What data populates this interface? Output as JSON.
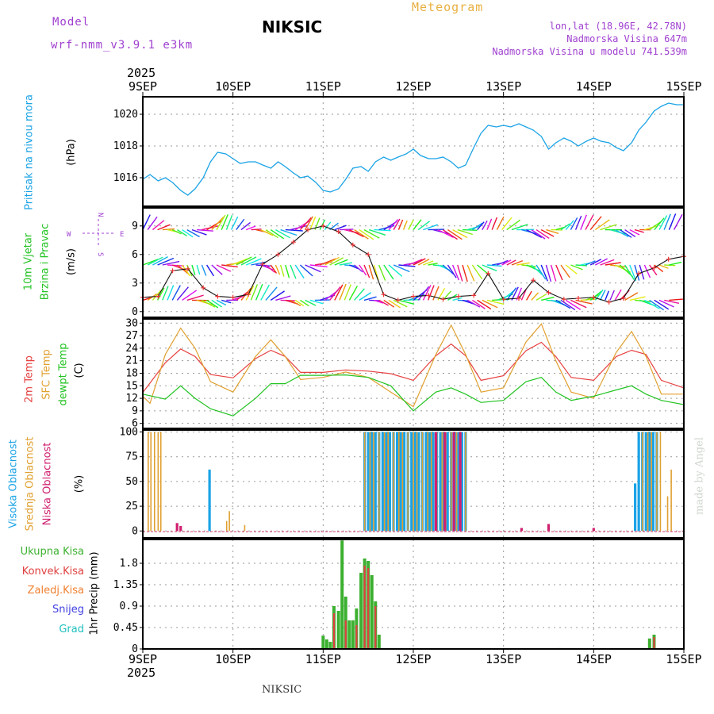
{
  "header": {
    "model_label": "Model",
    "model_name": "wrf-nmm_v3.9.1 e3km",
    "station": "NIKSIC",
    "product": "Meteogram",
    "coords": "lon,lat (18.96E, 42.78N)",
    "elevation": "Nadmorska Visina 647m",
    "model_elevation": "Nadmorska Visina u modelu 741.539m",
    "year": "2025",
    "footer": "NIKSIC",
    "watermark": "made by Angel"
  },
  "colors": {
    "pressure": "#1aa3e6",
    "temp2m": "#e64040",
    "sfc": "#e0a030",
    "dewpt": "#22c322",
    "high_cloud": "#1aa3e6",
    "mid_cloud": "#e0a030",
    "low_cloud": "#d02070",
    "total_precip": "#3cb030",
    "conv_precip": "#e04040",
    "ice_precip": "#f08030",
    "snow": "#4040e0",
    "hail": "#20c0c0",
    "wind_speed": "#ee3333"
  },
  "x_axis": {
    "ticks": [
      "9SEP",
      "10SEP",
      "11SEP",
      "12SEP",
      "13SEP",
      "14SEP",
      "15SEP"
    ]
  },
  "wind_legend": {
    "west": "W",
    "east": "E",
    "north": "N",
    "south": "S"
  },
  "panels": {
    "pressure": {
      "label": "Pritisak na nivou mora",
      "unit": "(hPa)",
      "ticks": [
        "1016",
        "1018",
        "1020"
      ]
    },
    "wind": {
      "label1": "10m Vjetar",
      "label2": "Brzina i Pravac",
      "unit": "(m/s)",
      "ticks": [
        "0",
        "3",
        "6",
        "9"
      ]
    },
    "temp": {
      "label1": "2m Temp",
      "label2": "SFC Temp",
      "label3": "dewpt Temp",
      "unit": "(C)",
      "ticks": [
        "6",
        "9",
        "12",
        "15",
        "18",
        "21",
        "24",
        "27",
        "30"
      ]
    },
    "cloud": {
      "label1": "Visoka Oblacnost",
      "label2": "Srednja Oblacnost",
      "label3": "Niska Oblacnost",
      "unit": "(%)",
      "ticks": [
        "0",
        "25",
        "50",
        "75",
        "100"
      ]
    },
    "precip": {
      "unit": "1hr Precip (mm)",
      "ticks": [
        "0",
        "0.45",
        "0.9",
        "1.35",
        "1.8"
      ],
      "legend": [
        "Ukupna Kisa",
        "Konvek.Kisa",
        "Zaledj.Kisa",
        "Snijeg",
        "Grad"
      ]
    }
  },
  "chart_data": [
    {
      "type": "line",
      "title": "",
      "ylabel": "Pritisak na nivou mora (hPa)",
      "x_unit": "days since 9SEP 00UTC",
      "ylim": [
        1014.2,
        1021.1
      ],
      "series": [
        {
          "name": "Pritisak na nivou mora",
          "x": [
            0,
            0.08,
            0.17,
            0.25,
            0.33,
            0.42,
            0.5,
            0.58,
            0.67,
            0.75,
            0.83,
            0.92,
            1.0,
            1.08,
            1.17,
            1.25,
            1.33,
            1.42,
            1.5,
            1.58,
            1.67,
            1.75,
            1.83,
            1.92,
            2.0,
            2.08,
            2.17,
            2.25,
            2.33,
            2.42,
            2.5,
            2.58,
            2.67,
            2.75,
            2.83,
            2.92,
            3.0,
            3.08,
            3.17,
            3.25,
            3.33,
            3.42,
            3.5,
            3.58,
            3.67,
            3.75,
            3.83,
            3.92,
            4.0,
            4.08,
            4.17,
            4.25,
            4.33,
            4.42,
            4.5,
            4.58,
            4.67,
            4.75,
            4.83,
            4.92,
            5.0,
            5.08,
            5.17,
            5.25,
            5.33,
            5.42,
            5.5,
            5.58,
            5.67,
            5.75,
            5.83,
            5.92,
            6.0
          ],
          "values": [
            1015.9,
            1016.2,
            1015.8,
            1016.0,
            1015.7,
            1015.2,
            1014.9,
            1015.3,
            1016.0,
            1017.0,
            1017.6,
            1017.5,
            1017.2,
            1016.9,
            1017.0,
            1017.0,
            1016.8,
            1016.6,
            1017.0,
            1016.7,
            1016.3,
            1016.0,
            1016.1,
            1015.7,
            1015.2,
            1015.1,
            1015.3,
            1015.9,
            1016.6,
            1016.7,
            1016.4,
            1017.0,
            1017.3,
            1017.1,
            1017.3,
            1017.5,
            1017.8,
            1017.4,
            1017.2,
            1017.2,
            1017.3,
            1017.0,
            1016.6,
            1016.8,
            1017.9,
            1018.8,
            1019.3,
            1019.2,
            1019.3,
            1019.2,
            1019.4,
            1019.2,
            1019.0,
            1018.6,
            1017.8,
            1018.2,
            1018.5,
            1018.3,
            1018.0,
            1018.3,
            1018.5,
            1018.3,
            1018.2,
            1017.9,
            1017.7,
            1018.2,
            1019.0,
            1019.5,
            1020.2,
            1020.5,
            1020.7,
            1020.6,
            1020.6
          ]
        }
      ]
    },
    {
      "type": "line",
      "title": "",
      "ylabel": "10m Vjetar Brzina i Pravac (m/s)",
      "x_unit": "days since 9SEP 00UTC",
      "ylim": [
        -0.6,
        10.9
      ],
      "series": [
        {
          "name": "10m Vjetar",
          "x": [
            0,
            0.17,
            0.33,
            0.5,
            0.67,
            0.83,
            1.0,
            1.17,
            1.33,
            1.5,
            1.67,
            1.83,
            2.0,
            2.17,
            2.33,
            2.5,
            2.67,
            2.83,
            3.0,
            3.17,
            3.33,
            3.5,
            3.67,
            3.83,
            4.0,
            4.17,
            4.33,
            4.5,
            4.67,
            4.83,
            5.0,
            5.17,
            5.33,
            5.5,
            5.67,
            5.83,
            6.0
          ],
          "values": [
            1.5,
            1.6,
            4.3,
            4.5,
            2.5,
            1.6,
            1.5,
            1.8,
            5.0,
            6.0,
            7.3,
            8.6,
            9.0,
            8.4,
            7.0,
            6.0,
            1.8,
            1.2,
            1.6,
            1.7,
            1.3,
            1.6,
            1.7,
            4.0,
            1.3,
            1.4,
            3.3,
            2.0,
            1.3,
            1.4,
            1.5,
            1.0,
            1.4,
            4.0,
            4.6,
            5.5,
            5.8
          ]
        }
      ]
    },
    {
      "type": "line",
      "title": "",
      "ylabel": "Temp (C)",
      "x_unit": "days since 9SEP 00UTC",
      "ylim": [
        4.8,
        31
      ],
      "series": [
        {
          "name": "2m Temp",
          "x": [
            0,
            0.25,
            0.42,
            0.58,
            0.75,
            1.0,
            1.25,
            1.42,
            1.58,
            1.75,
            2.0,
            2.25,
            2.5,
            2.75,
            3.0,
            3.25,
            3.42,
            3.58,
            3.75,
            4.0,
            4.25,
            4.42,
            4.58,
            4.75,
            5.0,
            5.25,
            5.42,
            5.58,
            5.75,
            6.0
          ],
          "values": [
            13.4,
            20.5,
            23.8,
            22.0,
            17.7,
            16.9,
            21.5,
            23.5,
            22.0,
            18.2,
            18.2,
            18.8,
            18.5,
            17.9,
            16.3,
            22.2,
            25.0,
            22.2,
            16.3,
            17.4,
            23.4,
            25.4,
            22.0,
            17.0,
            16.3,
            22.0,
            23.5,
            22.5,
            16.3,
            14.5
          ]
        },
        {
          "name": "SFC Temp",
          "x": [
            0,
            0.08,
            0.25,
            0.42,
            0.58,
            0.75,
            1.0,
            1.25,
            1.42,
            1.58,
            1.75,
            2.0,
            2.25,
            2.5,
            2.75,
            3.0,
            3.25,
            3.42,
            3.58,
            3.75,
            4.0,
            4.25,
            4.42,
            4.58,
            4.75,
            5.0,
            5.25,
            5.42,
            5.58,
            5.75,
            6.0
          ],
          "values": [
            12.5,
            10.8,
            22.5,
            28.8,
            24.0,
            16.0,
            13.5,
            22.0,
            26.0,
            22.0,
            16.5,
            17.0,
            18.3,
            17.0,
            13.5,
            10.0,
            22.5,
            29.5,
            22.5,
            13.5,
            14.5,
            25.5,
            29.8,
            21.0,
            13.5,
            12.0,
            23.0,
            28.0,
            22.0,
            13.0,
            13.0
          ]
        },
        {
          "name": "dewpt Temp",
          "x": [
            0,
            0.25,
            0.42,
            0.58,
            0.75,
            1.0,
            1.25,
            1.42,
            1.58,
            1.75,
            2.0,
            2.25,
            2.5,
            2.75,
            3.0,
            3.25,
            3.42,
            3.58,
            3.75,
            4.0,
            4.25,
            4.42,
            4.58,
            4.75,
            5.0,
            5.25,
            5.42,
            5.58,
            5.75,
            6.0
          ],
          "values": [
            13.0,
            11.8,
            15.0,
            12.0,
            9.5,
            7.8,
            12.0,
            15.5,
            15.5,
            17.5,
            17.5,
            17.6,
            17.0,
            15.0,
            9.0,
            13.5,
            14.5,
            13.0,
            11.0,
            11.5,
            16.0,
            17.0,
            13.5,
            11.5,
            12.5,
            14.0,
            15.0,
            13.0,
            11.5,
            10.5
          ]
        }
      ]
    },
    {
      "type": "bar",
      "title": "",
      "ylabel": "Oblacnost (%)",
      "x_unit": "days since 9SEP 00UTC",
      "ylim": [
        -7,
        102
      ],
      "series": [
        {
          "name": "Visoka Oblacnost",
          "x": [
            0.74,
            2.46,
            2.5,
            2.54,
            2.58,
            2.62,
            2.66,
            2.7,
            2.74,
            2.78,
            2.82,
            2.86,
            2.9,
            2.94,
            2.98,
            3.02,
            3.06,
            3.1,
            3.14,
            3.18,
            3.22,
            3.26,
            3.3,
            3.34,
            3.38,
            3.42,
            3.46,
            3.5,
            3.54,
            3.58,
            5.46,
            5.5,
            5.54,
            5.58,
            5.62,
            5.66,
            5.7
          ],
          "values": [
            62,
            100,
            100,
            100,
            100,
            100,
            100,
            100,
            100,
            100,
            100,
            100,
            100,
            100,
            100,
            100,
            100,
            100,
            100,
            100,
            100,
            100,
            100,
            100,
            100,
            100,
            100,
            100,
            100,
            100,
            48,
            100,
            100,
            100,
            100,
            100,
            100
          ]
        },
        {
          "name": "Srednja Oblacnost",
          "x": [
            0.06,
            0.09,
            0.13,
            0.17,
            0.2,
            0.93,
            0.96,
            1.13,
            2.46,
            2.52,
            2.56,
            2.62,
            2.68,
            2.72,
            2.78,
            2.84,
            2.88,
            2.94,
            3.0,
            3.04,
            3.1,
            3.16,
            3.2,
            3.26,
            3.32,
            3.36,
            3.42,
            3.48,
            3.52,
            3.58,
            5.54,
            5.6,
            5.64,
            5.7,
            5.74,
            5.82,
            5.86,
            6.0
          ],
          "values": [
            100,
            100,
            100,
            100,
            100,
            10,
            20,
            6,
            100,
            100,
            100,
            100,
            100,
            100,
            100,
            100,
            100,
            100,
            100,
            100,
            100,
            100,
            100,
            100,
            100,
            100,
            100,
            100,
            100,
            100,
            100,
            100,
            100,
            100,
            100,
            35,
            62,
            100
          ]
        },
        {
          "name": "Niska Oblacnost",
          "x": [
            0.38,
            0.42,
            3.25,
            3.35,
            3.45,
            3.52,
            4.2,
            4.5,
            5.0
          ],
          "values": [
            8,
            5,
            100,
            100,
            100,
            100,
            3,
            7,
            3
          ]
        }
      ]
    },
    {
      "type": "bar",
      "title": "",
      "ylabel": "1hr Precip (mm)",
      "x_unit": "days since 9SEP 00UTC",
      "ylim": [
        0,
        2.3
      ],
      "series": [
        {
          "name": "Ukupna Kisa",
          "x": [
            2.0,
            2.04,
            2.08,
            2.12,
            2.17,
            2.21,
            2.25,
            2.29,
            2.33,
            2.37,
            2.42,
            2.46,
            2.5,
            2.54,
            2.58,
            2.62,
            4.62,
            5.62,
            5.67
          ],
          "values": [
            0.28,
            0.2,
            0.15,
            0.9,
            0.8,
            2.28,
            1.1,
            0.6,
            0.6,
            0.85,
            1.6,
            1.9,
            1.85,
            1.55,
            1.0,
            0.3,
            0.02,
            0.22,
            0.3
          ]
        },
        {
          "name": "Konvek.Kisa",
          "x": [
            2.12,
            2.25,
            2.37,
            2.46,
            2.5,
            2.58,
            5.67
          ],
          "values": [
            0.75,
            0.6,
            0.5,
            1.75,
            1.7,
            0.9,
            0.25
          ]
        }
      ]
    }
  ]
}
